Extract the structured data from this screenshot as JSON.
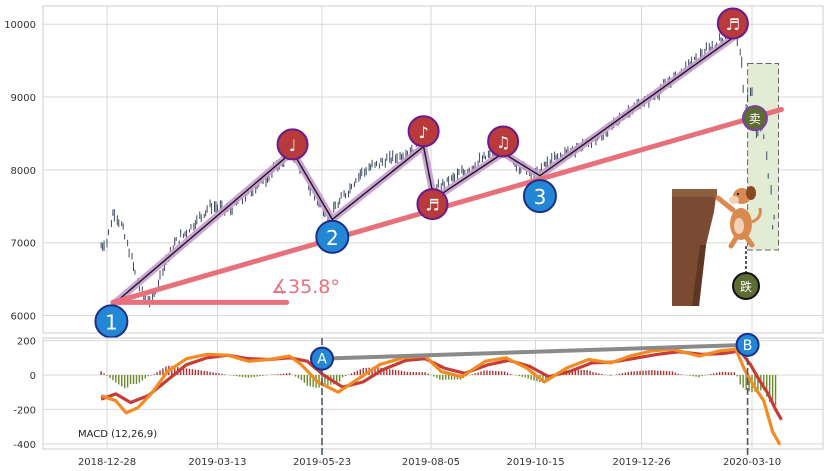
{
  "chart_data": [
    {
      "type": "candlestick",
      "panel": "price",
      "yticks": [
        6000,
        7000,
        8000,
        9000,
        10000
      ],
      "ylim": [
        5760,
        10250
      ],
      "grid": true,
      "price_path": [
        [
          "2018-12-24",
          6950
        ],
        [
          "2018-12-28",
          7000
        ],
        [
          "2019-01-02",
          7450
        ],
        [
          "2019-01-08",
          7200
        ],
        [
          "2019-01-15",
          6700
        ],
        [
          "2019-01-22",
          6250
        ],
        [
          "2019-01-28",
          6200
        ],
        [
          "2019-02-04",
          6650
        ],
        [
          "2019-02-13",
          7000
        ],
        [
          "2019-02-25",
          7250
        ],
        [
          "2019-03-08",
          7500
        ],
        [
          "2019-03-22",
          7450
        ],
        [
          "2019-04-05",
          7700
        ],
        [
          "2019-04-19",
          7950
        ],
        [
          "2019-05-03",
          8250
        ],
        [
          "2019-05-07",
          8150
        ],
        [
          "2019-05-14",
          7800
        ],
        [
          "2019-05-21",
          7550
        ],
        [
          "2019-05-28",
          7350
        ],
        [
          "2019-06-06",
          7600
        ],
        [
          "2019-06-18",
          7950
        ],
        [
          "2019-07-02",
          8100
        ],
        [
          "2019-07-16",
          8200
        ],
        [
          "2019-07-31",
          8350
        ],
        [
          "2019-08-06",
          7650
        ],
        [
          "2019-08-13",
          7800
        ],
        [
          "2019-08-26",
          7950
        ],
        [
          "2019-09-10",
          8150
        ],
        [
          "2019-09-23",
          8300
        ],
        [
          "2019-10-04",
          8050
        ],
        [
          "2019-10-15",
          7950
        ],
        [
          "2019-10-28",
          8150
        ],
        [
          "2019-11-12",
          8300
        ],
        [
          "2019-11-29",
          8450
        ],
        [
          "2019-12-17",
          8800
        ],
        [
          "2020-01-03",
          9000
        ],
        [
          "2020-01-20",
          9300
        ],
        [
          "2020-02-03",
          9550
        ],
        [
          "2020-02-14",
          9700
        ],
        [
          "2020-02-26",
          9950
        ],
        [
          "2020-03-03",
          9600
        ],
        [
          "2020-03-06",
          8800
        ],
        [
          "2020-03-10",
          9150
        ],
        [
          "2020-03-13",
          8500
        ],
        [
          "2020-03-18",
          8600
        ],
        [
          "2020-03-23",
          7700
        ],
        [
          "2020-03-25",
          7050
        ],
        [
          "2020-03-27",
          7850
        ]
      ],
      "zigzag": [
        [
          "2019-01-01",
          6150
        ],
        [
          "2019-05-03",
          8250
        ],
        [
          "2019-05-30",
          7320
        ],
        [
          "2019-07-31",
          8320
        ],
        [
          "2019-08-07",
          7600
        ],
        [
          "2019-09-23",
          8230
        ],
        [
          "2019-10-18",
          7920
        ],
        [
          "2020-03-03",
          9900
        ]
      ],
      "trendline": [
        [
          "2019-01-01",
          6180
        ],
        [
          "2020-03-30",
          8830
        ]
      ],
      "baseline": [
        [
          "2019-01-01",
          6180
        ],
        [
          "2019-04-29",
          6180
        ]
      ],
      "angle_label": "∡35.8°",
      "markers": [
        {
          "label": "1",
          "date": "2018-12-31",
          "value": 5920,
          "kind": "pivot-low"
        },
        {
          "label": "2",
          "date": "2019-05-30",
          "value": 7080,
          "kind": "pivot-low"
        },
        {
          "label": "3",
          "date": "2019-10-18",
          "value": 7640,
          "kind": "pivot-low"
        },
        {
          "label": "♩",
          "date": "2019-05-03",
          "value": 8350,
          "kind": "note"
        },
        {
          "label": "♪",
          "date": "2019-07-31",
          "value": 8530,
          "kind": "note"
        },
        {
          "label": "♬",
          "date": "2019-08-06",
          "value": 7530,
          "kind": "note"
        },
        {
          "label": "♫",
          "date": "2019-09-23",
          "value": 8390,
          "kind": "note"
        },
        {
          "label": "♬",
          "date": "2020-02-26",
          "value": 10010,
          "kind": "note"
        }
      ],
      "sell_marker": {
        "label": "卖",
        "date": "2020-03-12",
        "value": 8710
      },
      "fall_marker": {
        "label": "跌"
      },
      "highlight_box": {
        "from": "2020-03-07",
        "to": "2020-03-28",
        "top": 9460,
        "bottom": 6900
      }
    },
    {
      "type": "macd",
      "panel": "macd",
      "label": "MACD (12,26,9)",
      "xticks": [
        "2018-12-28",
        "2019-03-13",
        "2019-05-23",
        "2019-08-05",
        "2019-10-15",
        "2019-12-26",
        "2020-03-10"
      ],
      "yticks": [
        200,
        0,
        -200,
        -400
      ],
      "ylim": [
        -430,
        215
      ],
      "grid": true,
      "macd_line": [
        [
          "2018-12-24",
          -120
        ],
        [
          "2019-01-03",
          -150
        ],
        [
          "2019-01-10",
          -220
        ],
        [
          "2019-01-18",
          -190
        ],
        [
          "2019-01-28",
          -100
        ],
        [
          "2019-02-07",
          20
        ],
        [
          "2019-02-20",
          95
        ],
        [
          "2019-03-06",
          120
        ],
        [
          "2019-03-20",
          115
        ],
        [
          "2019-04-03",
          80
        ],
        [
          "2019-04-17",
          90
        ],
        [
          "2019-05-01",
          110
        ],
        [
          "2019-05-09",
          60
        ],
        [
          "2019-05-20",
          -40
        ],
        [
          "2019-06-03",
          -100
        ],
        [
          "2019-06-17",
          -20
        ],
        [
          "2019-07-01",
          60
        ],
        [
          "2019-07-17",
          100
        ],
        [
          "2019-08-01",
          110
        ],
        [
          "2019-08-12",
          20
        ],
        [
          "2019-08-26",
          -10
        ],
        [
          "2019-09-11",
          80
        ],
        [
          "2019-09-25",
          100
        ],
        [
          "2019-10-09",
          40
        ],
        [
          "2019-10-21",
          -40
        ],
        [
          "2019-11-05",
          40
        ],
        [
          "2019-11-20",
          90
        ],
        [
          "2019-12-05",
          70
        ],
        [
          "2019-12-18",
          110
        ],
        [
          "2020-01-02",
          140
        ],
        [
          "2020-01-16",
          150
        ],
        [
          "2020-02-03",
          110
        ],
        [
          "2020-02-17",
          140
        ],
        [
          "2020-02-28",
          150
        ],
        [
          "2020-03-05",
          30
        ],
        [
          "2020-03-11",
          -60
        ],
        [
          "2020-03-18",
          -150
        ],
        [
          "2020-03-24",
          -330
        ],
        [
          "2020-03-29",
          -405
        ]
      ],
      "signal_line": [
        [
          "2018-12-24",
          -140
        ],
        [
          "2019-01-03",
          -110
        ],
        [
          "2019-01-13",
          -160
        ],
        [
          "2019-01-25",
          -120
        ],
        [
          "2019-02-07",
          -30
        ],
        [
          "2019-02-20",
          60
        ],
        [
          "2019-03-06",
          100
        ],
        [
          "2019-03-20",
          115
        ],
        [
          "2019-04-03",
          95
        ],
        [
          "2019-04-17",
          90
        ],
        [
          "2019-05-01",
          100
        ],
        [
          "2019-05-13",
          80
        ],
        [
          "2019-05-24",
          0
        ],
        [
          "2019-06-06",
          -70
        ],
        [
          "2019-06-20",
          -40
        ],
        [
          "2019-07-03",
          30
        ],
        [
          "2019-07-19",
          85
        ],
        [
          "2019-08-01",
          95
        ],
        [
          "2019-08-14",
          40
        ],
        [
          "2019-08-28",
          10
        ],
        [
          "2019-09-13",
          60
        ],
        [
          "2019-09-27",
          85
        ],
        [
          "2019-10-11",
          50
        ],
        [
          "2019-10-24",
          -10
        ],
        [
          "2019-11-07",
          20
        ],
        [
          "2019-11-22",
          70
        ],
        [
          "2019-12-06",
          75
        ],
        [
          "2019-12-20",
          95
        ],
        [
          "2020-01-06",
          120
        ],
        [
          "2020-01-20",
          135
        ],
        [
          "2020-02-05",
          120
        ],
        [
          "2020-02-19",
          125
        ],
        [
          "2020-03-02",
          140
        ],
        [
          "2020-03-09",
          60
        ],
        [
          "2020-03-15",
          -30
        ],
        [
          "2020-03-21",
          -110
        ],
        [
          "2020-03-26",
          -200
        ],
        [
          "2020-03-30",
          -260
        ]
      ],
      "divergence_line": [
        [
          "2019-05-23",
          95
        ],
        [
          "2020-03-07",
          175
        ]
      ],
      "divergence_markers": [
        {
          "label": "A",
          "date": "2019-05-23",
          "value": 95
        },
        {
          "label": "B",
          "date": "2020-03-07",
          "value": 175
        }
      ],
      "vlines": [
        "2019-05-23",
        "2020-03-07"
      ]
    }
  ],
  "colors": {
    "price": "#3d4a63",
    "zigzag_highlight": "#c79bd0",
    "zigzag": "#1a1a1a",
    "trendline": "#e8707b",
    "angle_text": "#e8707b",
    "pivot_badge": "#2487d6",
    "pivot_ring": "#1b2e8a",
    "note_badge": "#b83a3a",
    "note_ring": "#6a1a8e",
    "sell_badge": "#5d6b35",
    "sell_ring": "#7d3fa0",
    "highlight_fill": "#e2ebd4",
    "macd": "#f28b22",
    "signal": "#c83c38",
    "hist_pos": "#b03030",
    "hist_neg": "#6a8a2a",
    "divergence": "#8a8a8a",
    "grid": "#d8d8d8"
  },
  "icons": {
    "sticker": "dog-hanging-from-cliff-sticker"
  }
}
